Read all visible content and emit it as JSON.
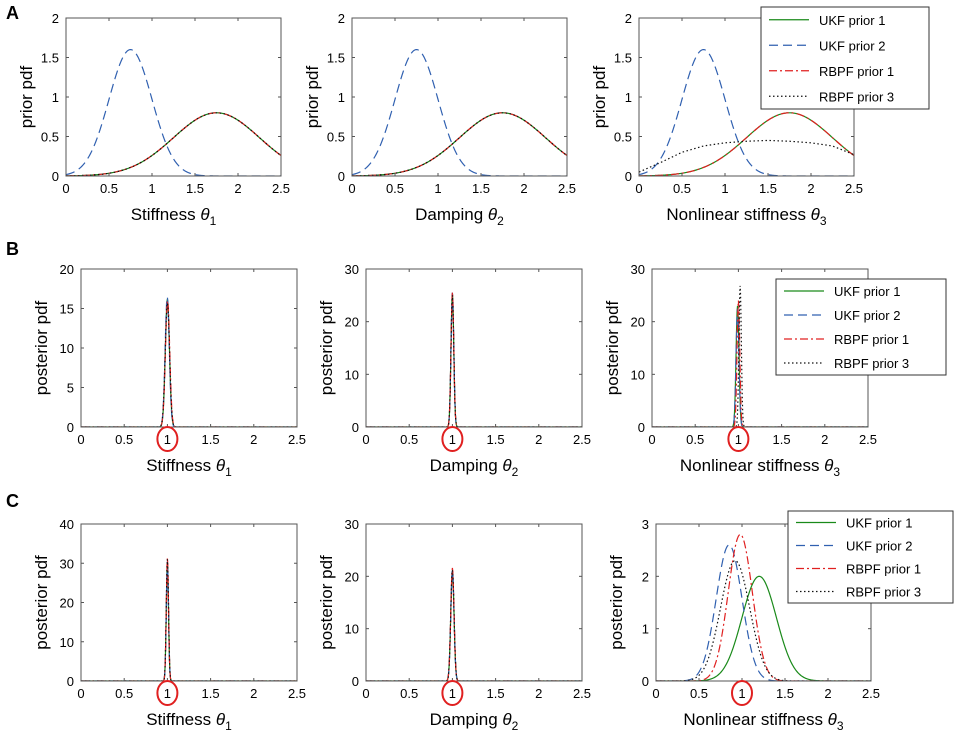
{
  "figure_row_labels": [
    "A",
    "B",
    "C"
  ],
  "styles": {
    "UKF prior 1": {
      "color": "#1a8a1a",
      "dash": ""
    },
    "UKF prior 2": {
      "color": "#3060b0",
      "dash": "9,5"
    },
    "RBPF prior 1": {
      "color": "#e02020",
      "dash": "8,3,2,3"
    },
    "RBPF prior 3": {
      "color": "#111111",
      "dash": "1.5,2.5"
    }
  },
  "axis_line_color": "#555555",
  "circle_color": "#e02020",
  "chart_data": [
    {
      "id": "A1",
      "row": "A",
      "type": "line",
      "xlabel": "Stiffness",
      "xsym": "θ",
      "xsub": "1",
      "ylabel": "prior pdf",
      "xlim": [
        0,
        2.5
      ],
      "ylim": [
        0,
        2
      ],
      "xticks": [
        0,
        0.5,
        1,
        1.5,
        2,
        2.5
      ],
      "xtick_labels": [
        "0",
        "0.5",
        "1",
        "1.5",
        "2",
        "2.5"
      ],
      "yticks": [
        0,
        0.5,
        1,
        1.5,
        2
      ],
      "ytick_labels": [
        "0",
        "0.5",
        "1",
        "1.5",
        "2"
      ],
      "circle_label": null,
      "series": [
        {
          "name": "UKF prior 1",
          "dist": "gauss",
          "mean": 1.75,
          "sd": 0.5,
          "peak": 0.8
        },
        {
          "name": "UKF prior 2",
          "dist": "gauss",
          "mean": 0.75,
          "sd": 0.25,
          "peak": 1.6
        },
        {
          "name": "RBPF prior 1",
          "dist": "gauss",
          "mean": 1.75,
          "sd": 0.5,
          "peak": 0.8
        },
        {
          "name": "RBPF prior 3",
          "dist": "gauss",
          "mean": 1.75,
          "sd": 0.5,
          "peak": 0.8
        }
      ],
      "legend": null
    },
    {
      "id": "A2",
      "row": "A",
      "type": "line",
      "xlabel": "Damping",
      "xsym": "θ",
      "xsub": "2",
      "ylabel": "prior pdf",
      "xlim": [
        0,
        2.5
      ],
      "ylim": [
        0,
        2
      ],
      "xticks": [
        0,
        0.5,
        1,
        1.5,
        2,
        2.5
      ],
      "xtick_labels": [
        "0",
        "0.5",
        "1",
        "1.5",
        "2",
        "2.5"
      ],
      "yticks": [
        0,
        0.5,
        1,
        1.5,
        2
      ],
      "ytick_labels": [
        "0",
        "0.5",
        "1",
        "1.5",
        "2"
      ],
      "circle_label": null,
      "series": [
        {
          "name": "UKF prior 1",
          "dist": "gauss",
          "mean": 1.75,
          "sd": 0.5,
          "peak": 0.8
        },
        {
          "name": "UKF prior 2",
          "dist": "gauss",
          "mean": 0.75,
          "sd": 0.25,
          "peak": 1.6
        },
        {
          "name": "RBPF prior 1",
          "dist": "gauss",
          "mean": 1.75,
          "sd": 0.5,
          "peak": 0.8
        },
        {
          "name": "RBPF prior 3",
          "dist": "gauss",
          "mean": 1.75,
          "sd": 0.5,
          "peak": 0.8
        }
      ],
      "legend": null
    },
    {
      "id": "A3",
      "row": "A",
      "type": "line",
      "xlabel": "Nonlinear stiffness",
      "xsym": "θ",
      "xsub": "3",
      "ylabel": "prior pdf",
      "xlim": [
        0,
        2.5
      ],
      "ylim": [
        0,
        2
      ],
      "xticks": [
        0,
        0.5,
        1,
        1.5,
        2,
        2.5
      ],
      "xtick_labels": [
        "0",
        "0.5",
        "1",
        "1.5",
        "2",
        "2.5"
      ],
      "yticks": [
        0,
        0.5,
        1,
        1.5,
        2
      ],
      "ytick_labels": [
        "0",
        "0.5",
        "1",
        "1.5",
        "2"
      ],
      "circle_label": null,
      "series": [
        {
          "name": "UKF prior 1",
          "dist": "gauss",
          "mean": 1.75,
          "sd": 0.5,
          "peak": 0.8
        },
        {
          "name": "UKF prior 2",
          "dist": "gauss",
          "mean": 0.75,
          "sd": 0.25,
          "peak": 1.6
        },
        {
          "name": "RBPF prior 1",
          "dist": "gauss",
          "mean": 1.75,
          "sd": 0.5,
          "peak": 0.8
        },
        {
          "name": "RBPF prior 3",
          "dist": "points",
          "x": [
            0,
            0.25,
            0.5,
            0.75,
            1.0,
            1.25,
            1.5,
            1.75,
            2.0,
            2.25,
            2.5
          ],
          "y": [
            0.05,
            0.17,
            0.3,
            0.38,
            0.42,
            0.44,
            0.45,
            0.44,
            0.42,
            0.38,
            0.27
          ]
        }
      ],
      "legend": {
        "entries": [
          "UKF prior 1",
          "UKF prior 2",
          "RBPF prior 1",
          "RBPF prior 3"
        ]
      }
    },
    {
      "id": "B1",
      "row": "B",
      "type": "line",
      "xlabel": "Stiffness",
      "xsym": "θ",
      "xsub": "1",
      "ylabel": "posterior pdf",
      "xlim": [
        0,
        2.5
      ],
      "ylim": [
        0,
        20
      ],
      "xticks": [
        0,
        0.5,
        1,
        1.5,
        2,
        2.5
      ],
      "xtick_labels": [
        "0",
        "0.5",
        "1",
        "1.5",
        "2",
        "2.5"
      ],
      "yticks": [
        0,
        5,
        10,
        15,
        20
      ],
      "ytick_labels": [
        "0",
        "5",
        "10",
        "15",
        "20"
      ],
      "circle_label": "1",
      "series": [
        {
          "name": "UKF prior 1",
          "dist": "gauss",
          "mean": 1.0,
          "sd": 0.024,
          "peak": 16.2
        },
        {
          "name": "UKF prior 2",
          "dist": "gauss",
          "mean": 0.998,
          "sd": 0.024,
          "peak": 16.5
        },
        {
          "name": "RBPF prior 1",
          "dist": "gauss",
          "mean": 1.002,
          "sd": 0.025,
          "peak": 16.0
        },
        {
          "name": "RBPF prior 3",
          "dist": "gauss",
          "mean": 1.0,
          "sd": 0.025,
          "peak": 15.7
        }
      ],
      "legend": null
    },
    {
      "id": "B2",
      "row": "B",
      "type": "line",
      "xlabel": "Damping",
      "xsym": "θ",
      "xsub": "2",
      "ylabel": "posterior pdf",
      "xlim": [
        0,
        2.5
      ],
      "ylim": [
        0,
        30
      ],
      "xticks": [
        0,
        0.5,
        1,
        1.5,
        2,
        2.5
      ],
      "xtick_labels": [
        "0",
        "0.5",
        "1",
        "1.5",
        "2",
        "2.5"
      ],
      "yticks": [
        0,
        10,
        20,
        30
      ],
      "ytick_labels": [
        "0",
        "10",
        "20",
        "30"
      ],
      "circle_label": "1",
      "series": [
        {
          "name": "UKF prior 1",
          "dist": "gauss",
          "mean": 1.0,
          "sd": 0.016,
          "peak": 25.3
        },
        {
          "name": "UKF prior 2",
          "dist": "gauss",
          "mean": 1.0,
          "sd": 0.016,
          "peak": 25.5
        },
        {
          "name": "RBPF prior 1",
          "dist": "gauss",
          "mean": 1.0,
          "sd": 0.016,
          "peak": 25.6
        },
        {
          "name": "RBPF prior 3",
          "dist": "gauss",
          "mean": 1.0,
          "sd": 0.016,
          "peak": 25.0
        }
      ],
      "legend": null
    },
    {
      "id": "B3",
      "row": "B",
      "type": "line",
      "xlabel": "Nonlinear stiffness",
      "xsym": "θ",
      "xsub": "3",
      "ylabel": "posterior pdf",
      "xlim": [
        0,
        2.5
      ],
      "ylim": [
        0,
        30
      ],
      "xticks": [
        0,
        0.5,
        1,
        1.5,
        2,
        2.5
      ],
      "xtick_labels": [
        "0",
        "0.5",
        "1",
        "1.5",
        "2",
        "2.5"
      ],
      "yticks": [
        0,
        10,
        20,
        30
      ],
      "ytick_labels": [
        "0",
        "10",
        "20",
        "30"
      ],
      "circle_label": "1",
      "series": [
        {
          "name": "UKF prior 1",
          "dist": "gauss",
          "mean": 0.99,
          "sd": 0.017,
          "peak": 23.0
        },
        {
          "name": "UKF prior 2",
          "dist": "gauss",
          "mean": 0.99,
          "sd": 0.017,
          "peak": 22.5
        },
        {
          "name": "RBPF prior 1",
          "dist": "gauss",
          "mean": 1.0,
          "sd": 0.016,
          "peak": 24.0
        },
        {
          "name": "RBPF prior 3",
          "dist": "gauss",
          "mean": 1.02,
          "sd": 0.014,
          "peak": 26.8
        }
      ],
      "legend": {
        "entries": [
          "UKF prior 1",
          "UKF prior 2",
          "RBPF prior 1",
          "RBPF prior 3"
        ]
      }
    },
    {
      "id": "C1",
      "row": "C",
      "type": "line",
      "xlabel": "Stiffness",
      "xsym": "θ",
      "xsub": "1",
      "ylabel": "posterior pdf",
      "xlim": [
        0,
        2.5
      ],
      "ylim": [
        0,
        40
      ],
      "xticks": [
        0,
        0.5,
        1,
        1.5,
        2,
        2.5
      ],
      "xtick_labels": [
        "0",
        "0.5",
        "1",
        "1.5",
        "2",
        "2.5"
      ],
      "yticks": [
        0,
        10,
        20,
        30,
        40
      ],
      "ytick_labels": [
        "0",
        "10",
        "20",
        "30",
        "40"
      ],
      "circle_label": "1",
      "series": [
        {
          "name": "UKF prior 1",
          "dist": "gauss",
          "mean": 1.0,
          "sd": 0.013,
          "peak": 30.0
        },
        {
          "name": "UKF prior 2",
          "dist": "gauss",
          "mean": 1.0,
          "sd": 0.013,
          "peak": 30.5
        },
        {
          "name": "RBPF prior 1",
          "dist": "gauss",
          "mean": 1.0,
          "sd": 0.013,
          "peak": 31.5
        },
        {
          "name": "RBPF prior 3",
          "dist": "gauss",
          "mean": 1.0,
          "sd": 0.013,
          "peak": 31.0
        }
      ],
      "legend": null
    },
    {
      "id": "C2",
      "row": "C",
      "type": "line",
      "xlabel": "Damping",
      "xsym": "θ",
      "xsub": "2",
      "ylabel": "posterior pdf",
      "xlim": [
        0,
        2.5
      ],
      "ylim": [
        0,
        30
      ],
      "xticks": [
        0,
        0.5,
        1,
        1.5,
        2,
        2.5
      ],
      "xtick_labels": [
        "0",
        "0.5",
        "1",
        "1.5",
        "2",
        "2.5"
      ],
      "yticks": [
        0,
        10,
        20,
        30
      ],
      "ytick_labels": [
        "0",
        "10",
        "20",
        "30"
      ],
      "circle_label": "1",
      "series": [
        {
          "name": "UKF prior 1",
          "dist": "gauss",
          "mean": 1.0,
          "sd": 0.019,
          "peak": 21.0
        },
        {
          "name": "UKF prior 2",
          "dist": "gauss",
          "mean": 1.0,
          "sd": 0.019,
          "peak": 21.3
        },
        {
          "name": "RBPF prior 1",
          "dist": "gauss",
          "mean": 1.0,
          "sd": 0.019,
          "peak": 21.6
        },
        {
          "name": "RBPF prior 3",
          "dist": "gauss",
          "mean": 1.0,
          "sd": 0.019,
          "peak": 21.2
        }
      ],
      "legend": null
    },
    {
      "id": "C3",
      "row": "C",
      "type": "line",
      "xlabel": "Nonlinear stiffness",
      "xsym": "θ",
      "xsub": "3",
      "ylabel": "posterior pdf",
      "xlim": [
        0,
        2.5
      ],
      "ylim": [
        0,
        3
      ],
      "xticks": [
        0,
        0.5,
        1,
        1.5,
        2,
        2.5
      ],
      "xtick_labels": [
        "0",
        "0.5",
        "1",
        "1.5",
        "2",
        "2.5"
      ],
      "yticks": [
        0,
        1,
        2,
        3
      ],
      "ytick_labels": [
        "0",
        "1",
        "2",
        "3"
      ],
      "circle_label": "1",
      "series": [
        {
          "name": "UKF prior 1",
          "dist": "gauss",
          "mean": 1.2,
          "sd": 0.2,
          "peak": 2.0
        },
        {
          "name": "UKF prior 2",
          "dist": "gauss",
          "mean": 0.85,
          "sd": 0.15,
          "peak": 2.6
        },
        {
          "name": "RBPF prior 1",
          "dist": "gauss",
          "mean": 0.98,
          "sd": 0.14,
          "peak": 2.8
        },
        {
          "name": "RBPF prior 3",
          "dist": "gauss",
          "mean": 0.92,
          "sd": 0.17,
          "peak": 2.3
        }
      ],
      "legend": {
        "entries": [
          "UKF prior 1",
          "UKF prior 2",
          "RBPF prior 1",
          "RBPF prior 3"
        ]
      }
    }
  ]
}
